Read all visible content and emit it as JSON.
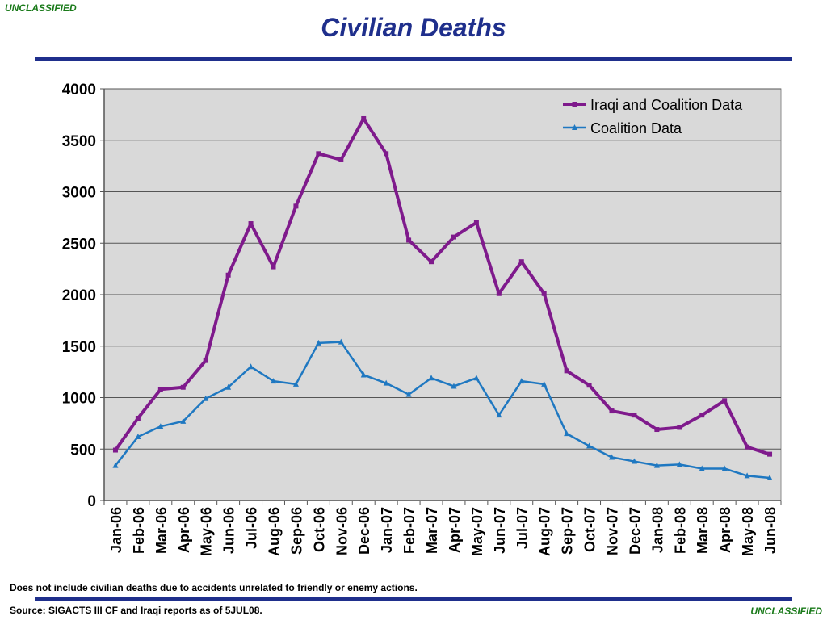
{
  "header": {
    "classification": "UNCLASSIFIED",
    "title": "Civilian Deaths"
  },
  "footer": {
    "note": "Does not include civilian deaths due to accidents unrelated to friendly or enemy actions.",
    "source": "Source:  SIGACTS III CF and Iraqi reports as of 5JUL08.",
    "classification": "UNCLASSIFIED"
  },
  "colors": {
    "accent": "#1f2f8c",
    "classification": "#1a7a1a",
    "plot_background": "#d9d9d9",
    "series_iraqi_coalition": "#7f1a8c",
    "series_coalition": "#1f78c1"
  },
  "chart_data": {
    "type": "line",
    "title": "",
    "xlabel": "",
    "ylabel": "",
    "ylim": [
      0,
      4000
    ],
    "yticks": [
      0,
      500,
      1000,
      1500,
      2000,
      2500,
      3000,
      3500,
      4000
    ],
    "grid": true,
    "legend_position": "top-right",
    "categories": [
      "Jan-06",
      "Feb-06",
      "Mar-06",
      "Apr-06",
      "May-06",
      "Jun-06",
      "Jul-06",
      "Aug-06",
      "Sep-06",
      "Oct-06",
      "Nov-06",
      "Dec-06",
      "Jan-07",
      "Feb-07",
      "Mar-07",
      "Apr-07",
      "May-07",
      "Jun-07",
      "Jul-07",
      "Aug-07",
      "Sep-07",
      "Oct-07",
      "Nov-07",
      "Dec-07",
      "Jan-08",
      "Feb-08",
      "Mar-08",
      "Apr-08",
      "May-08",
      "Jun-08"
    ],
    "series": [
      {
        "name": "Iraqi and Coalition Data",
        "marker": "square",
        "values": [
          490,
          800,
          1080,
          1100,
          1360,
          2190,
          2690,
          2270,
          2860,
          3370,
          3310,
          3710,
          3370,
          2530,
          2320,
          2560,
          2700,
          2010,
          2320,
          2010,
          1260,
          1120,
          870,
          830,
          690,
          710,
          830,
          970,
          520,
          450
        ]
      },
      {
        "name": "Coalition Data",
        "marker": "triangle",
        "values": [
          340,
          620,
          720,
          770,
          990,
          1100,
          1300,
          1160,
          1130,
          1530,
          1540,
          1220,
          1140,
          1030,
          1190,
          1110,
          1190,
          830,
          1160,
          1130,
          650,
          530,
          420,
          380,
          340,
          350,
          310,
          310,
          240,
          220
        ]
      }
    ]
  }
}
